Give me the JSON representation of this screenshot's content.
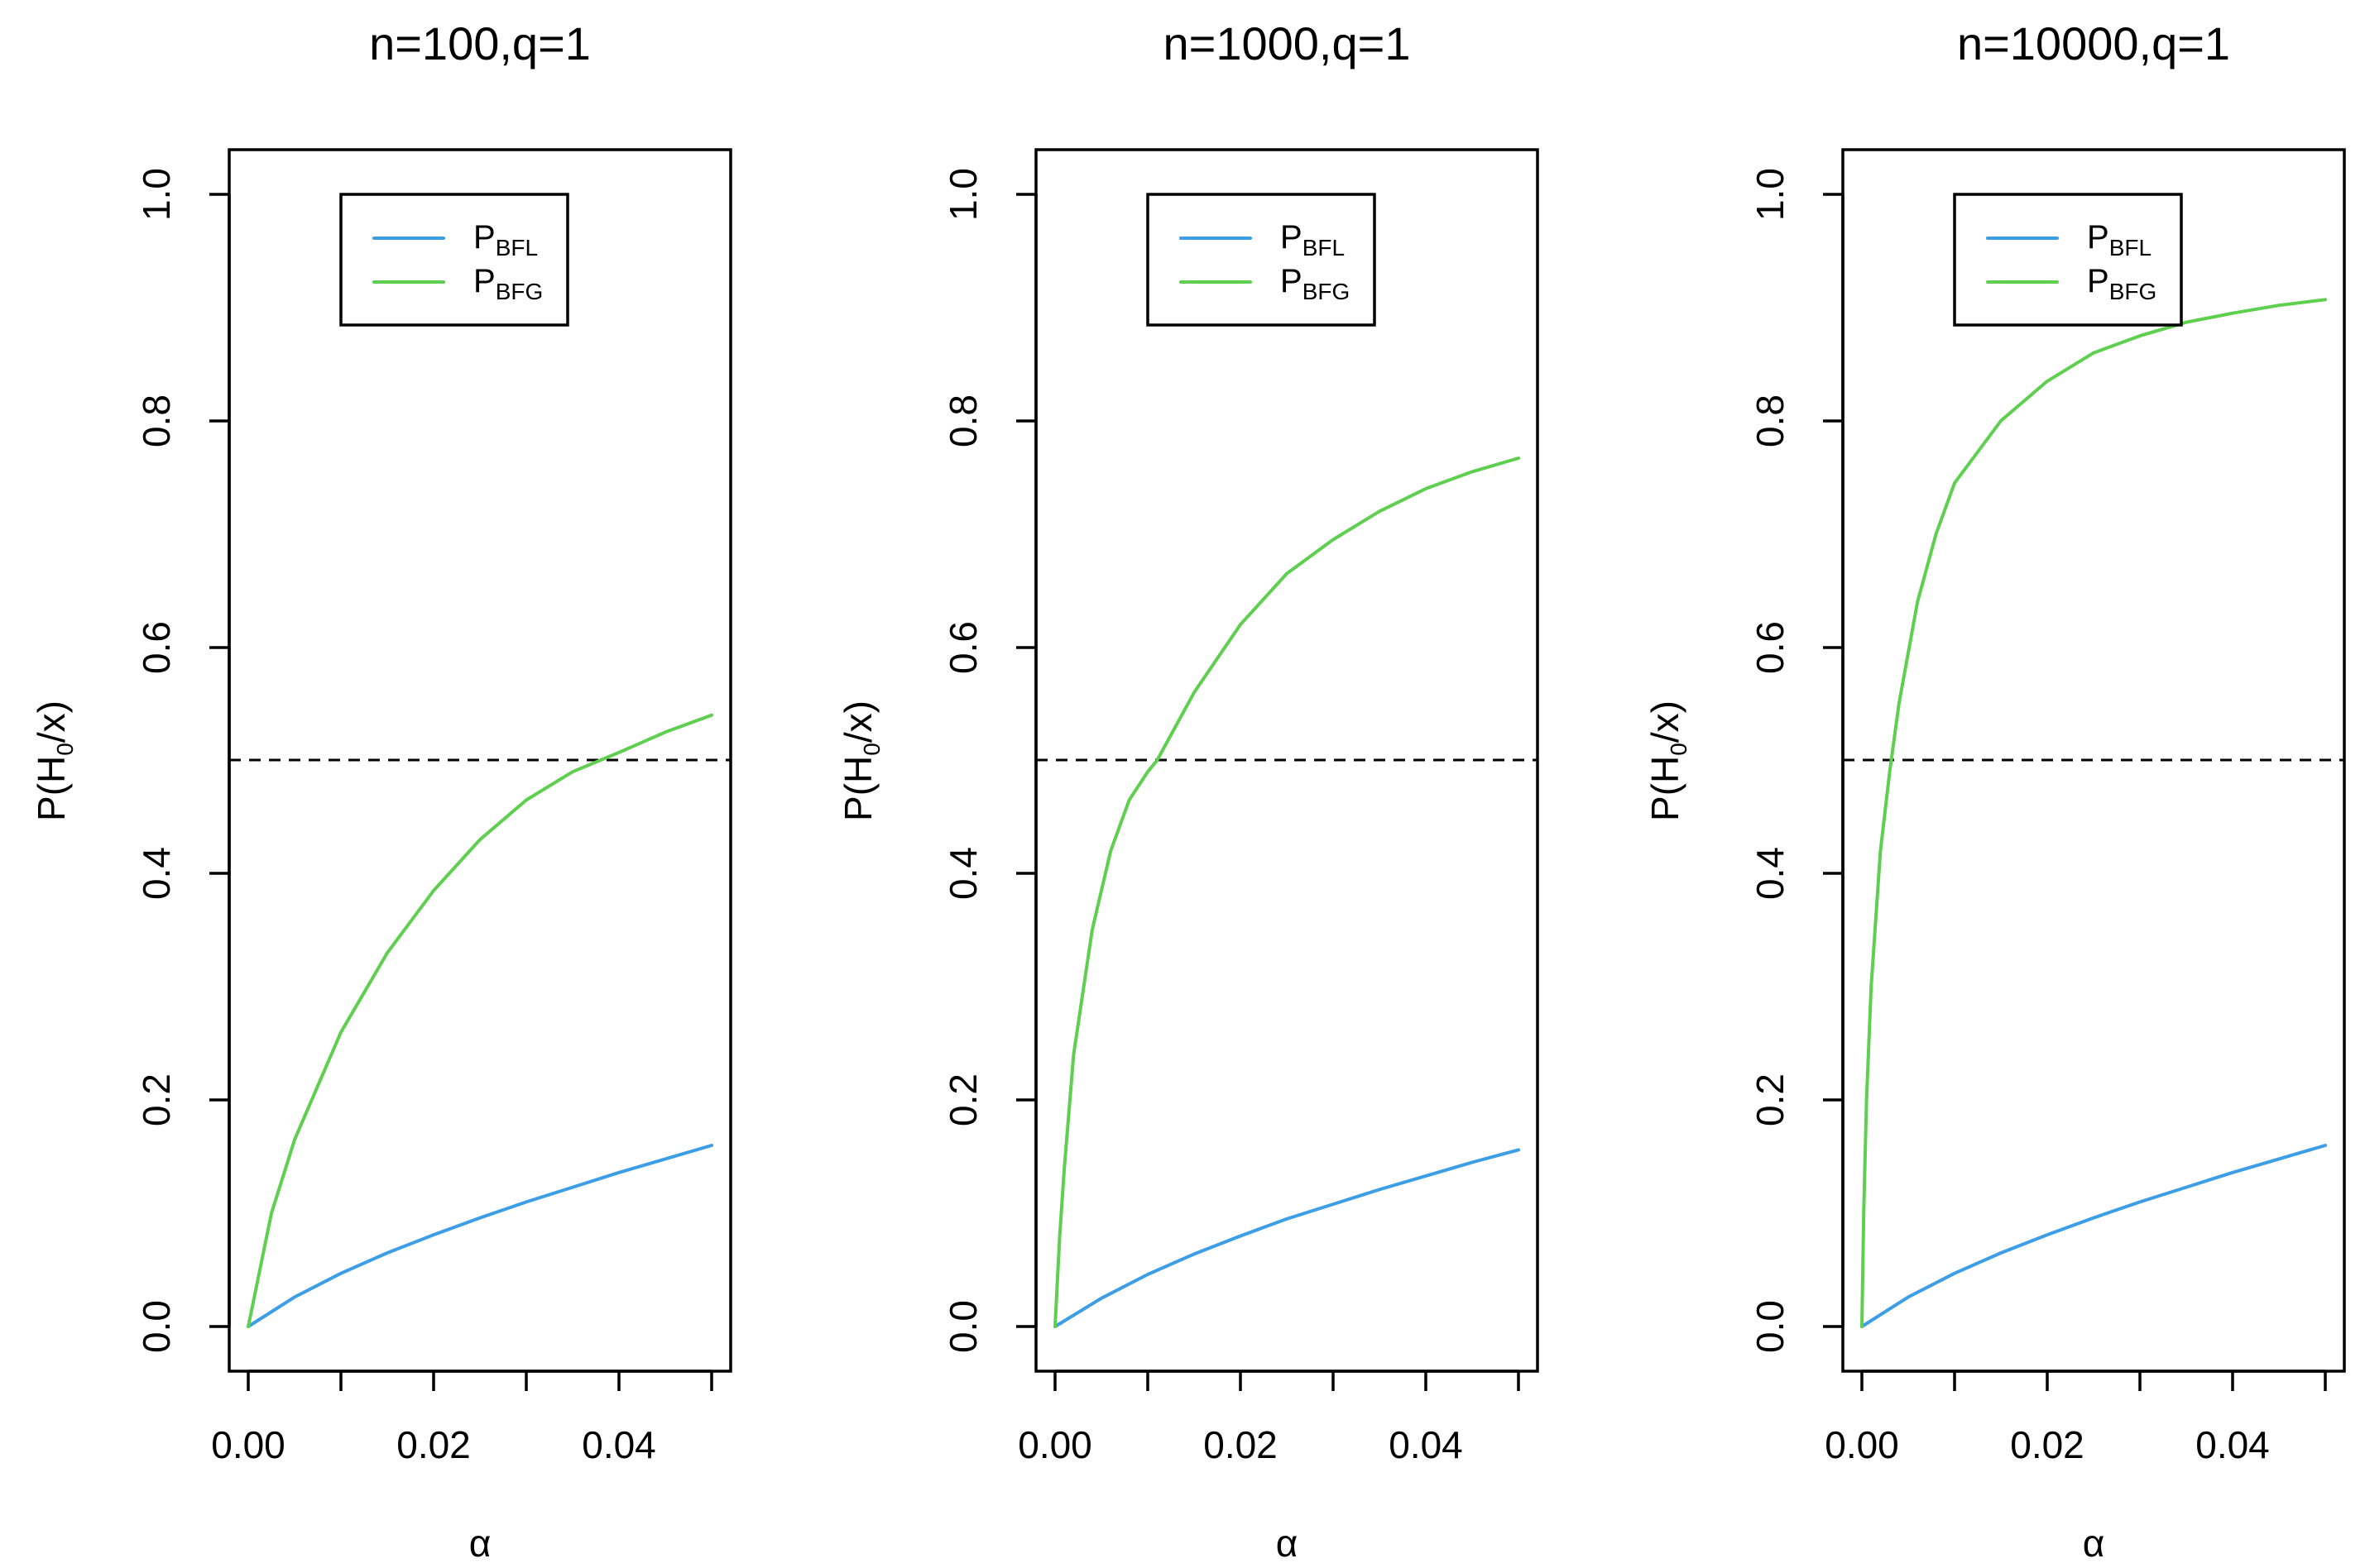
{
  "colors": {
    "bfl": "#3b9ee6",
    "bfg": "#5ecf4e",
    "axis": "#000000",
    "reference": "#000000"
  },
  "chart_data": [
    {
      "type": "line",
      "title": "n=100,q=1",
      "xlabel": "α",
      "ylabel_parts": {
        "prefix": "P(H",
        "sub": "0",
        "suffix": "/x)"
      },
      "xlim": [
        0,
        0.05
      ],
      "ylim": [
        0,
        1
      ],
      "xticks": [
        0,
        0.01,
        0.02,
        0.03,
        0.04,
        0.05
      ],
      "xtick_labels": [
        "0.00",
        "",
        "0.02",
        "",
        "0.04",
        ""
      ],
      "yticks": [
        0,
        0.2,
        0.4,
        0.6,
        0.8,
        1
      ],
      "ytick_labels": [
        "0.0",
        "0.2",
        "0.4",
        "0.6",
        "0.8",
        "1.0"
      ],
      "reference_line": {
        "y": 0.5,
        "style": "dashed"
      },
      "legend": {
        "location": "top-left",
        "entries": [
          {
            "main": "P",
            "sub": "BFL"
          },
          {
            "main": "P",
            "sub": "BFG"
          }
        ]
      },
      "series": [
        {
          "name": "P_BFL",
          "x": [
            0,
            0.005,
            0.01,
            0.015,
            0.02,
            0.025,
            0.03,
            0.035,
            0.04,
            0.045,
            0.05
          ],
          "values": [
            0,
            0.026,
            0.047,
            0.065,
            0.081,
            0.096,
            0.11,
            0.123,
            0.136,
            0.148,
            0.16
          ]
        },
        {
          "name": "P_BFG",
          "x": [
            0,
            0.0025,
            0.005,
            0.01,
            0.015,
            0.02,
            0.025,
            0.03,
            0.035,
            0.04,
            0.045,
            0.05
          ],
          "values": [
            0,
            0.1,
            0.165,
            0.26,
            0.33,
            0.385,
            0.43,
            0.465,
            0.49,
            0.507,
            0.525,
            0.54
          ]
        }
      ]
    },
    {
      "type": "line",
      "title": "n=1000,q=1",
      "xlabel": "α",
      "ylabel_parts": {
        "prefix": "P(H",
        "sub": "0",
        "suffix": "/x)"
      },
      "xlim": [
        0,
        0.05
      ],
      "ylim": [
        0,
        1
      ],
      "xticks": [
        0,
        0.01,
        0.02,
        0.03,
        0.04,
        0.05
      ],
      "xtick_labels": [
        "0.00",
        "",
        "0.02",
        "",
        "0.04",
        ""
      ],
      "yticks": [
        0,
        0.2,
        0.4,
        0.6,
        0.8,
        1
      ],
      "ytick_labels": [
        "0.0",
        "0.2",
        "0.4",
        "0.6",
        "0.8",
        "1.0"
      ],
      "reference_line": {
        "y": 0.5,
        "style": "dashed"
      },
      "legend": {
        "location": "top-left",
        "entries": [
          {
            "main": "P",
            "sub": "BFL"
          },
          {
            "main": "P",
            "sub": "BFG"
          }
        ]
      },
      "series": [
        {
          "name": "P_BFL",
          "x": [
            0,
            0.005,
            0.01,
            0.015,
            0.02,
            0.025,
            0.03,
            0.035,
            0.04,
            0.045,
            0.05
          ],
          "values": [
            0,
            0.025,
            0.046,
            0.064,
            0.08,
            0.095,
            0.108,
            0.121,
            0.133,
            0.145,
            0.156
          ]
        },
        {
          "name": "P_BFG",
          "x": [
            0,
            0.0005,
            0.001,
            0.002,
            0.004,
            0.006,
            0.008,
            0.01,
            0.011,
            0.015,
            0.02,
            0.025,
            0.03,
            0.035,
            0.04,
            0.045,
            0.05
          ],
          "values": [
            0,
            0.08,
            0.14,
            0.24,
            0.35,
            0.42,
            0.465,
            0.49,
            0.5,
            0.56,
            0.62,
            0.665,
            0.695,
            0.72,
            0.74,
            0.755,
            0.767
          ]
        }
      ]
    },
    {
      "type": "line",
      "title": "n=10000,q=1",
      "xlabel": "α",
      "ylabel_parts": {
        "prefix": "P(H",
        "sub": "0",
        "suffix": "/x)"
      },
      "xlim": [
        0,
        0.05
      ],
      "ylim": [
        0,
        1
      ],
      "xticks": [
        0,
        0.01,
        0.02,
        0.03,
        0.04,
        0.05
      ],
      "xtick_labels": [
        "0.00",
        "",
        "0.02",
        "",
        "0.04",
        ""
      ],
      "yticks": [
        0,
        0.2,
        0.4,
        0.6,
        0.8,
        1
      ],
      "ytick_labels": [
        "0.0",
        "0.2",
        "0.4",
        "0.6",
        "0.8",
        "1.0"
      ],
      "reference_line": {
        "y": 0.5,
        "style": "dashed"
      },
      "legend": {
        "location": "top-left",
        "entries": [
          {
            "main": "P",
            "sub": "BFL"
          },
          {
            "main": "P",
            "sub": "BFG"
          }
        ]
      },
      "series": [
        {
          "name": "P_BFL",
          "x": [
            0,
            0.005,
            0.01,
            0.015,
            0.02,
            0.025,
            0.03,
            0.035,
            0.04,
            0.045,
            0.05
          ],
          "values": [
            0,
            0.026,
            0.047,
            0.065,
            0.081,
            0.096,
            0.11,
            0.123,
            0.136,
            0.148,
            0.16
          ]
        },
        {
          "name": "P_BFG",
          "x": [
            0,
            0.0002,
            0.0005,
            0.001,
            0.002,
            0.003,
            0.004,
            0.006,
            0.008,
            0.01,
            0.015,
            0.02,
            0.025,
            0.03,
            0.035,
            0.04,
            0.045,
            0.05
          ],
          "values": [
            0,
            0.1,
            0.2,
            0.3,
            0.42,
            0.49,
            0.55,
            0.64,
            0.7,
            0.745,
            0.8,
            0.835,
            0.86,
            0.875,
            0.887,
            0.895,
            0.902,
            0.907
          ]
        }
      ]
    }
  ]
}
